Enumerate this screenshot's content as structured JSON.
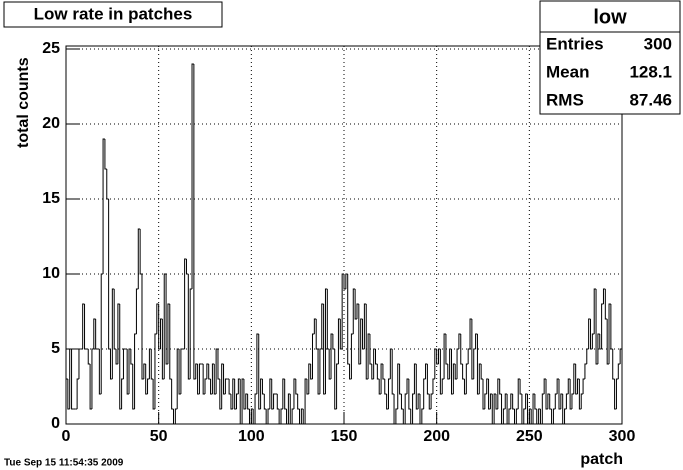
{
  "chart_data": {
    "type": "histogram",
    "title": "Low rate in patches",
    "xlabel": "patch",
    "ylabel": "total counts",
    "timestamp": "Tue Sep 15 11:54:35 2009",
    "stats": {
      "name": "low",
      "rows": [
        {
          "label": "Entries",
          "value": 300
        },
        {
          "label": "Mean",
          "value": 128.1
        },
        {
          "label": "RMS",
          "value": 87.46
        }
      ]
    },
    "color": "#000000",
    "bins": [
      0,
      1,
      2,
      3,
      4,
      5,
      6,
      7,
      8,
      9,
      10,
      11,
      12,
      13,
      14,
      15,
      16,
      17,
      18,
      19,
      20,
      21,
      22,
      23,
      24,
      25,
      26,
      27,
      28,
      29,
      30,
      31,
      32,
      33,
      34,
      35,
      36,
      37,
      38,
      39,
      40,
      41,
      42,
      43,
      44,
      45,
      46,
      47,
      48,
      49,
      50,
      51,
      52,
      53,
      54,
      55,
      56,
      57,
      58,
      59,
      60,
      61,
      62,
      63,
      64,
      65,
      66,
      67,
      68,
      69,
      70,
      71,
      72,
      73,
      74,
      75,
      76,
      77,
      78,
      79,
      80,
      81,
      82,
      83,
      84,
      85,
      86,
      87,
      88,
      89,
      90,
      91,
      92,
      93,
      94,
      95,
      96,
      97,
      98,
      99,
      100,
      101,
      102,
      103,
      104,
      105,
      106,
      107,
      108,
      109,
      110,
      111,
      112,
      113,
      114,
      115,
      116,
      117,
      118,
      119,
      120,
      121,
      122,
      123,
      124,
      125,
      126,
      127,
      128,
      129,
      130,
      131,
      132,
      133,
      134,
      135,
      136,
      137,
      138,
      139,
      140,
      141,
      142,
      143,
      144,
      145,
      146,
      147,
      148,
      149,
      150,
      151,
      152,
      153,
      154,
      155,
      156,
      157,
      158,
      159,
      160,
      161,
      162,
      163,
      164,
      165,
      166,
      167,
      168,
      169,
      170,
      171,
      172,
      173,
      174,
      175,
      176,
      177,
      178,
      179,
      180,
      181,
      182,
      183,
      184,
      185,
      186,
      187,
      188,
      189,
      190,
      191,
      192,
      193,
      194,
      195,
      196,
      197,
      198,
      199,
      200,
      201,
      202,
      203,
      204,
      205,
      206,
      207,
      208,
      209,
      210,
      211,
      212,
      213,
      214,
      215,
      216,
      217,
      218,
      219,
      220,
      221,
      222,
      223,
      224,
      225,
      226,
      227,
      228,
      229,
      230,
      231,
      232,
      233,
      234,
      235,
      236,
      237,
      238,
      239,
      240,
      241,
      242,
      243,
      244,
      245,
      246,
      247,
      248,
      249,
      250,
      251,
      252,
      253,
      254,
      255,
      256,
      257,
      258,
      259,
      260,
      261,
      262,
      263,
      264,
      265,
      266,
      267,
      268,
      269,
      270,
      271,
      272,
      273,
      274,
      275,
      276,
      277,
      278,
      279,
      280,
      281,
      282,
      283,
      284,
      285,
      286,
      287,
      288,
      289,
      290,
      291,
      292,
      293,
      294,
      295,
      296,
      297,
      298,
      299,
      300
    ],
    "values": [
      3,
      1,
      5,
      1,
      1,
      1,
      3,
      5,
      5,
      8,
      5,
      5,
      4,
      1,
      5,
      7,
      5,
      5,
      2,
      10,
      19,
      17,
      15,
      5,
      3,
      9,
      5,
      4,
      8,
      1,
      3,
      5,
      5,
      2,
      5,
      4,
      1,
      6,
      9,
      13,
      10,
      3,
      4,
      2,
      3,
      5,
      3,
      1,
      6,
      8,
      5,
      7,
      3,
      10,
      4,
      8,
      3,
      1,
      0,
      1,
      5,
      2,
      5,
      5,
      11,
      10,
      3,
      9,
      24,
      3,
      4,
      2,
      4,
      4,
      2,
      3,
      4,
      3,
      2,
      4,
      2,
      5,
      3,
      1,
      4,
      2,
      3,
      3,
      2,
      1,
      3,
      1,
      2,
      3,
      0,
      3,
      1,
      2,
      1,
      0,
      1,
      0,
      2,
      6,
      1,
      3,
      2,
      1,
      0,
      1,
      3,
      1,
      2,
      2,
      1,
      0,
      1,
      3,
      1,
      0,
      2,
      0,
      1,
      3,
      2,
      1,
      0,
      1,
      0,
      3,
      2,
      4,
      3,
      6,
      7,
      5,
      2,
      5,
      8,
      2,
      9,
      5,
      3,
      6,
      5,
      1,
      4,
      7,
      5,
      10,
      9,
      10,
      4,
      3,
      6,
      9,
      7,
      8,
      4,
      7,
      5,
      8,
      3,
      6,
      4,
      3,
      5,
      4,
      3,
      2,
      4,
      3,
      2,
      1,
      3,
      5,
      2,
      0,
      1,
      4,
      2,
      1,
      0,
      2,
      3,
      1,
      0,
      2,
      4,
      1,
      2,
      0,
      1,
      3,
      4,
      2,
      1,
      2,
      3,
      5,
      4,
      5,
      2,
      3,
      6,
      4,
      3,
      5,
      2,
      4,
      3,
      5,
      6,
      4,
      3,
      2,
      4,
      5,
      7,
      3,
      5,
      6,
      2,
      4,
      3,
      1,
      2,
      3,
      1,
      2,
      0,
      2,
      1,
      3,
      2,
      0,
      1,
      2,
      0,
      1,
      2,
      1,
      0,
      1,
      3,
      2,
      0,
      1,
      2,
      0,
      1,
      0,
      2,
      1,
      0,
      1,
      0,
      2,
      3,
      1,
      2,
      1,
      0,
      1,
      2,
      3,
      1,
      2,
      0,
      1,
      2,
      3,
      1,
      2,
      4,
      2,
      3,
      1,
      2,
      3,
      4,
      5,
      7,
      5,
      6,
      9,
      4,
      6,
      5,
      8,
      9,
      7,
      4,
      8,
      5,
      3,
      1,
      3,
      4,
      5
    ],
    "xlim": [
      0,
      300
    ],
    "ylim": [
      0,
      25.2
    ],
    "xticks": [
      0,
      50,
      100,
      150,
      200,
      250,
      300
    ],
    "yticks": [
      0,
      5,
      10,
      15,
      20,
      25
    ],
    "grid": true
  }
}
